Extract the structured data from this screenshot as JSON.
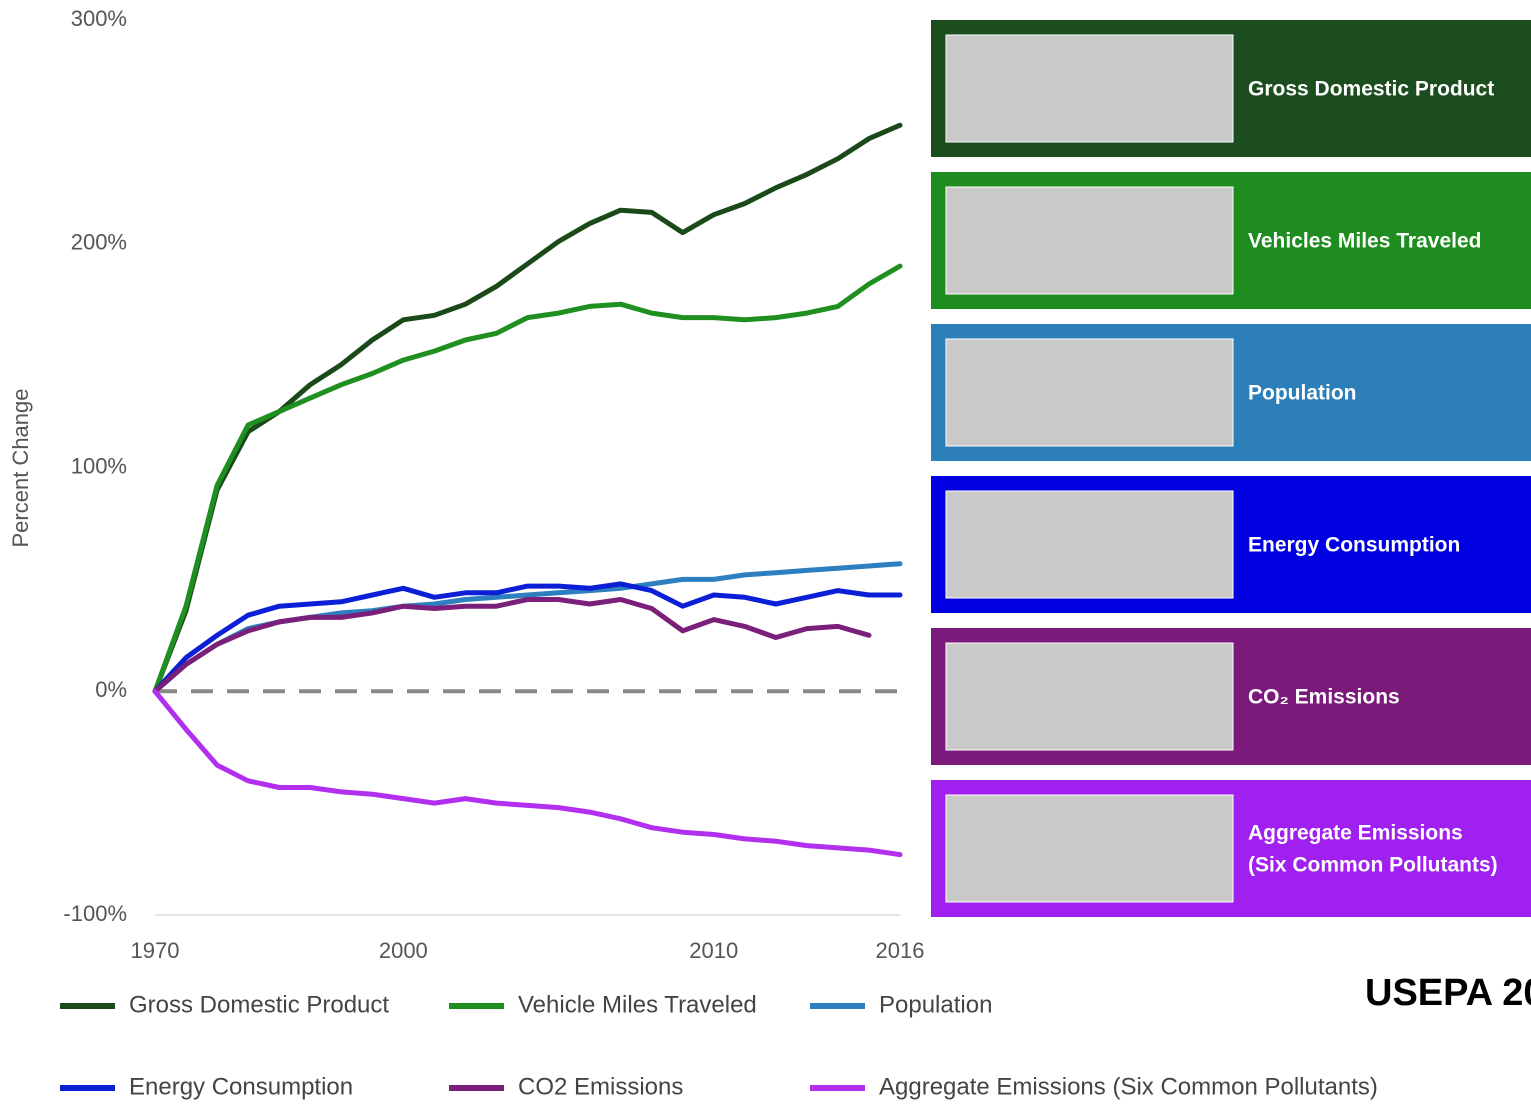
{
  "chart_data": {
    "type": "line",
    "y_label": "Percent Change",
    "categories": [
      "1970",
      null,
      null,
      null,
      null,
      null,
      null,
      null,
      "2000",
      null,
      null,
      null,
      null,
      null,
      null,
      null,
      null,
      null,
      "2010",
      null,
      null,
      null,
      null,
      null,
      "2016"
    ],
    "ylim": [
      -100,
      300
    ],
    "yticks": [
      {
        "value": -100,
        "label": "-100%"
      },
      {
        "value": 0,
        "label": "0%"
      },
      {
        "value": 100,
        "label": "100%"
      },
      {
        "value": 200,
        "label": "200%"
      },
      {
        "value": 300,
        "label": "300%"
      }
    ],
    "series": [
      {
        "name": "Gross Domestic Product",
        "color": "#1a4a1a",
        "values": [
          0,
          36,
          90,
          116,
          125,
          137,
          146,
          157,
          166,
          168,
          173,
          181,
          191,
          201,
          209,
          215,
          214,
          205,
          213,
          218,
          225,
          231,
          238,
          247,
          253
        ]
      },
      {
        "name": "Vehicle Miles Traveled",
        "color": "#1f8f1f",
        "values": [
          0,
          38,
          92,
          119,
          125,
          131,
          137,
          142,
          148,
          152,
          157,
          160,
          167,
          169,
          172,
          173,
          169,
          167,
          167,
          166,
          167,
          169,
          172,
          182,
          190
        ]
      },
      {
        "name": "Population",
        "color": "#2e7fbf",
        "values": [
          0,
          12,
          21,
          28,
          31,
          33,
          35,
          36,
          38,
          39,
          41,
          42,
          43,
          44,
          45,
          46,
          48,
          50,
          50,
          52,
          53,
          54,
          55,
          56,
          57
        ]
      },
      {
        "name": "Energy Consumption",
        "color": "#0a1fd6",
        "values": [
          0,
          15,
          25,
          34,
          38,
          39,
          40,
          43,
          46,
          42,
          44,
          44,
          47,
          47,
          46,
          48,
          45,
          38,
          43,
          42,
          39,
          42,
          45,
          43,
          43
        ]
      },
      {
        "name": "CO2 Emissions",
        "color": "#7a1f7a",
        "values": [
          0,
          12,
          21,
          27,
          31,
          33,
          33,
          35,
          38,
          37,
          38,
          38,
          41,
          41,
          39,
          41,
          37,
          27,
          32,
          29,
          24,
          28,
          29,
          25,
          null
        ]
      },
      {
        "name": "Aggregate Emissions (Six Common Pollutants)",
        "color": "#b32ff0",
        "values": [
          0,
          -17,
          -33,
          -40,
          -43,
          -43,
          -45,
          -46,
          -48,
          -50,
          -48,
          -50,
          -51,
          -52,
          -54,
          -57,
          -61,
          -63,
          -64,
          -66,
          -67,
          -69,
          -70,
          -71,
          -73
        ]
      }
    ]
  },
  "panels": [
    {
      "label": [
        "Gross Domestic Product"
      ],
      "color": "#1b4d1f"
    },
    {
      "label": [
        "Vehicles Miles Traveled"
      ],
      "color": "#1e8c1e"
    },
    {
      "label": [
        "Population"
      ],
      "color": "#2c7fb8"
    },
    {
      "label": [
        "Energy Consumption"
      ],
      "color": "#0000e0"
    },
    {
      "label": [
        "CO₂ Emissions"
      ],
      "color": "#7b1a7b"
    },
    {
      "label": [
        "Aggregate Emissions",
        "(Six Common Pollutants)"
      ],
      "color": "#a020f0"
    }
  ],
  "source": "USEPA 20"
}
